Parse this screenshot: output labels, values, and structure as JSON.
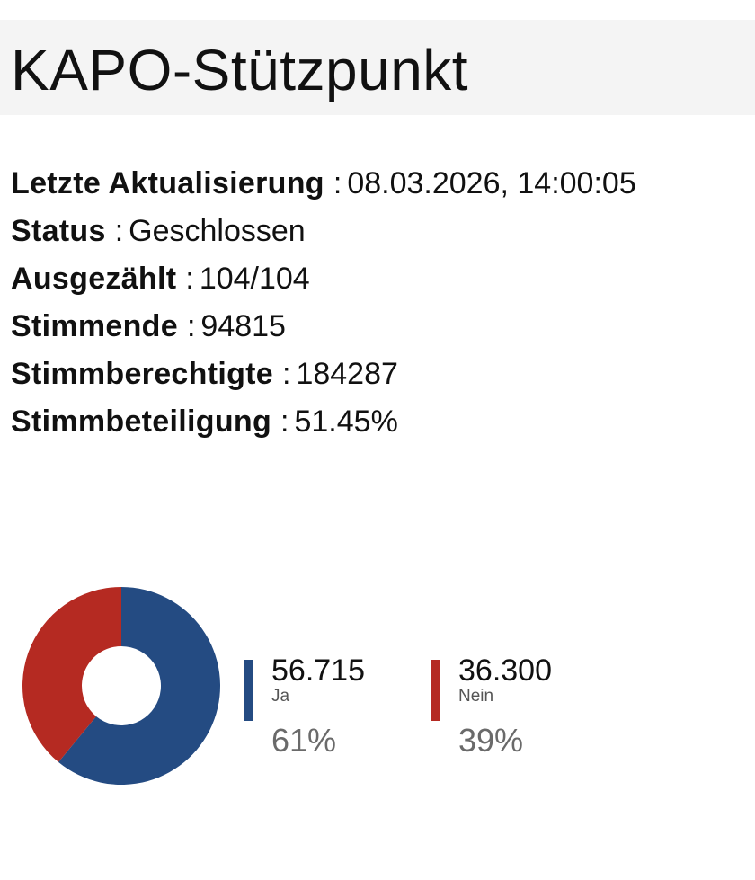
{
  "header": {
    "title": "KAPO-Stützpunkt"
  },
  "info": [
    {
      "key": "Letzte Aktualisierung",
      "value": "08.03.2026, 14:00:05"
    },
    {
      "key": "Status",
      "value": "Geschlossen"
    },
    {
      "key": "Ausgezählt",
      "value": "104/104"
    },
    {
      "key": "Stimmende",
      "value": "94815"
    },
    {
      "key": "Stimmberechtigte",
      "value": "184287"
    },
    {
      "key": "Stimmbeteiligung",
      "value": "51.45%"
    }
  ],
  "separator": ":",
  "chart_data": {
    "type": "pie",
    "style": "donut",
    "categories": [
      "Ja",
      "Nein"
    ],
    "values": [
      56715,
      36300
    ],
    "value_labels": [
      "56.715",
      "36.300"
    ],
    "percent_labels": [
      "61%",
      "39%"
    ],
    "percents": [
      61,
      39
    ],
    "colors": [
      "#244b82",
      "#b52a22"
    ],
    "legend_position": "right"
  }
}
